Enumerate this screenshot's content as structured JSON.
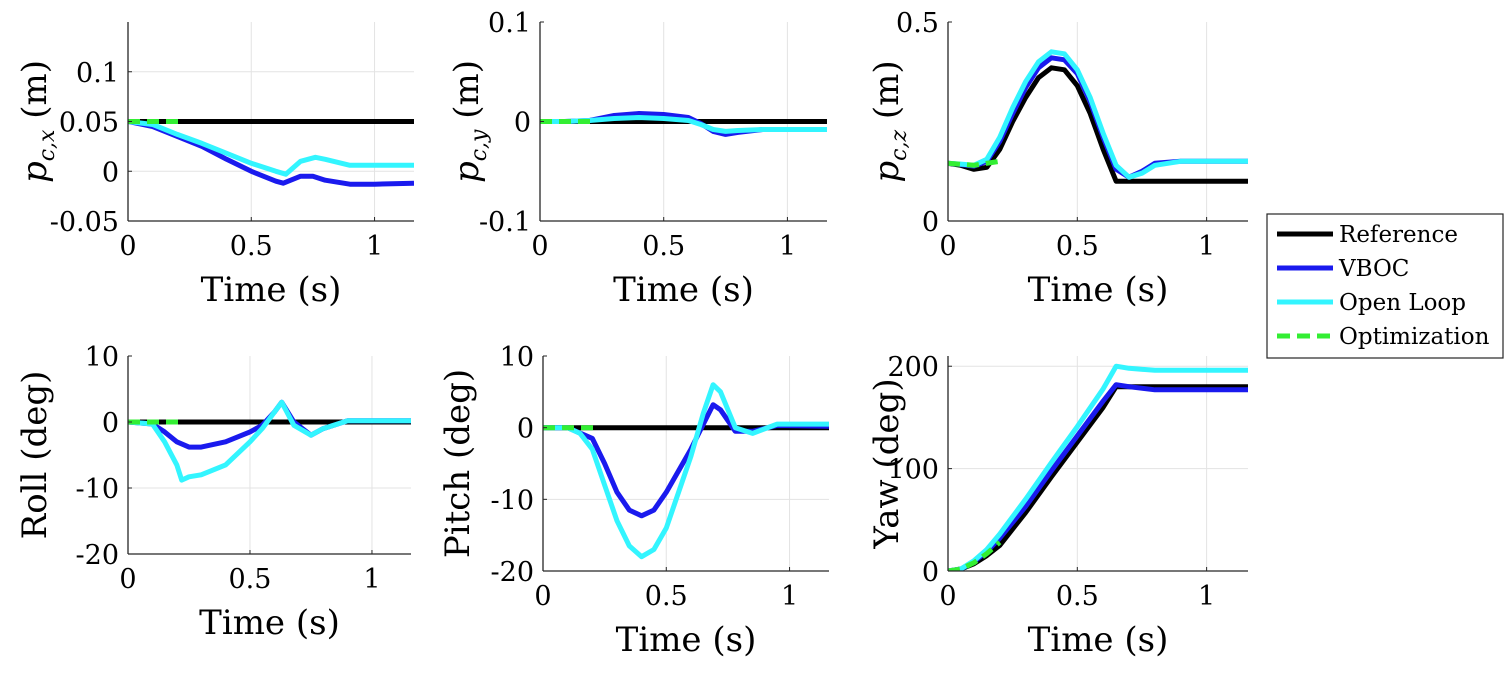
{
  "legend": {
    "entries": [
      {
        "label": "Reference",
        "color": "#000000",
        "dash": "solid"
      },
      {
        "label": "VBOC",
        "color": "#1a1aee",
        "dash": "solid"
      },
      {
        "label": "Open Loop",
        "color": "#33f5ff",
        "dash": "solid"
      },
      {
        "label": "Optimization",
        "color": "#33ee33",
        "dash": "dashed"
      }
    ]
  },
  "chart_data": [
    {
      "type": "line",
      "ylabel": {
        "base": "p",
        "sub": "c,x",
        "unit": " (m)"
      },
      "xlabel": "Time (s)",
      "xlim": [
        0,
        1.16
      ],
      "ylim": [
        -0.05,
        0.15
      ],
      "xticks": [
        0,
        0.5,
        1
      ],
      "xtick_labels": [
        "0",
        "0.5",
        "1"
      ],
      "yticks": [
        -0.05,
        0,
        0.05,
        0.1
      ],
      "ytick_labels": [
        "-0.05",
        "0",
        "0.05",
        "0.1"
      ],
      "series": [
        {
          "name": "Reference",
          "x": [
            0,
            1.16
          ],
          "y": [
            0.05,
            0.05
          ]
        },
        {
          "name": "VBOC",
          "x": [
            0,
            0.1,
            0.2,
            0.3,
            0.4,
            0.5,
            0.6,
            0.63,
            0.7,
            0.75,
            0.8,
            0.9,
            1.0,
            1.16
          ],
          "y": [
            0.05,
            0.045,
            0.035,
            0.025,
            0.012,
            0.0,
            -0.01,
            -0.012,
            -0.005,
            -0.005,
            -0.009,
            -0.013,
            -0.013,
            -0.012
          ]
        },
        {
          "name": "Open Loop",
          "x": [
            0,
            0.1,
            0.2,
            0.3,
            0.4,
            0.5,
            0.6,
            0.64,
            0.7,
            0.76,
            0.8,
            0.9,
            1.0,
            1.16
          ],
          "y": [
            0.05,
            0.047,
            0.037,
            0.028,
            0.018,
            0.008,
            0.0,
            -0.003,
            0.01,
            0.014,
            0.012,
            0.006,
            0.006,
            0.006
          ]
        },
        {
          "name": "Optimization",
          "x": [
            0,
            0.22
          ],
          "y": [
            0.05,
            0.05
          ]
        }
      ]
    },
    {
      "type": "line",
      "ylabel": {
        "base": "p",
        "sub": "c,y",
        "unit": " (m)"
      },
      "xlabel": "Time (s)",
      "xlim": [
        0,
        1.16
      ],
      "ylim": [
        -0.1,
        0.1
      ],
      "xticks": [
        0,
        0.5,
        1
      ],
      "xtick_labels": [
        "0",
        "0.5",
        "1"
      ],
      "yticks": [
        -0.1,
        0,
        0.1
      ],
      "ytick_labels": [
        "-0.1",
        "0",
        "0.1"
      ],
      "series": [
        {
          "name": "Reference",
          "x": [
            0,
            1.16
          ],
          "y": [
            0,
            0
          ]
        },
        {
          "name": "VBOC",
          "x": [
            0,
            0.1,
            0.2,
            0.3,
            0.4,
            0.5,
            0.6,
            0.65,
            0.7,
            0.75,
            0.8,
            0.9,
            1.0,
            1.16
          ],
          "y": [
            0,
            0,
            0.001,
            0.006,
            0.008,
            0.007,
            0.004,
            -0.002,
            -0.01,
            -0.013,
            -0.011,
            -0.008,
            -0.008,
            -0.008
          ]
        },
        {
          "name": "Open Loop",
          "x": [
            0,
            0.1,
            0.2,
            0.3,
            0.4,
            0.5,
            0.6,
            0.65,
            0.7,
            0.75,
            0.8,
            0.9,
            1.0,
            1.16
          ],
          "y": [
            0,
            0,
            0.001,
            0.003,
            0.004,
            0.003,
            0.001,
            -0.003,
            -0.008,
            -0.01,
            -0.009,
            -0.008,
            -0.008,
            -0.008
          ]
        },
        {
          "name": "Optimization",
          "x": [
            0,
            0.22
          ],
          "y": [
            0,
            0
          ]
        }
      ]
    },
    {
      "type": "line",
      "ylabel": {
        "base": "p",
        "sub": "c,z",
        "unit": " (m)"
      },
      "xlabel": "Time (s)",
      "xlim": [
        0,
        1.16
      ],
      "ylim": [
        0,
        0.5
      ],
      "xticks": [
        0,
        0.5,
        1
      ],
      "xtick_labels": [
        "0",
        "0.5",
        "1"
      ],
      "yticks": [
        0,
        0.5
      ],
      "ytick_labels": [
        "0",
        "0.5"
      ],
      "series": [
        {
          "name": "Reference",
          "x": [
            0,
            0.05,
            0.1,
            0.15,
            0.2,
            0.25,
            0.3,
            0.35,
            0.4,
            0.45,
            0.5,
            0.55,
            0.6,
            0.65,
            0.7,
            1.16
          ],
          "y": [
            0.145,
            0.14,
            0.13,
            0.135,
            0.18,
            0.25,
            0.31,
            0.36,
            0.385,
            0.38,
            0.34,
            0.27,
            0.18,
            0.1,
            0.1,
            0.1
          ]
        },
        {
          "name": "VBOC",
          "x": [
            0,
            0.05,
            0.1,
            0.15,
            0.2,
            0.25,
            0.3,
            0.35,
            0.4,
            0.45,
            0.5,
            0.55,
            0.6,
            0.65,
            0.7,
            0.75,
            0.8,
            0.9,
            1.0,
            1.16
          ],
          "y": [
            0.145,
            0.142,
            0.138,
            0.15,
            0.2,
            0.27,
            0.335,
            0.385,
            0.41,
            0.405,
            0.37,
            0.3,
            0.21,
            0.13,
            0.11,
            0.125,
            0.145,
            0.15,
            0.15,
            0.15
          ]
        },
        {
          "name": "Open Loop",
          "x": [
            0,
            0.05,
            0.1,
            0.15,
            0.2,
            0.25,
            0.3,
            0.35,
            0.4,
            0.45,
            0.5,
            0.55,
            0.6,
            0.65,
            0.7,
            0.75,
            0.8,
            0.9,
            1.0,
            1.16
          ],
          "y": [
            0.145,
            0.143,
            0.14,
            0.155,
            0.21,
            0.285,
            0.35,
            0.4,
            0.425,
            0.42,
            0.38,
            0.31,
            0.22,
            0.14,
            0.11,
            0.12,
            0.14,
            0.15,
            0.15,
            0.15
          ]
        },
        {
          "name": "Optimization",
          "x": [
            0,
            0.1,
            0.2
          ],
          "y": [
            0.145,
            0.14,
            0.15
          ]
        }
      ]
    },
    {
      "type": "line",
      "ylabel": {
        "text": "Roll (deg)"
      },
      "xlabel": "Time (s)",
      "xlim": [
        0,
        1.16
      ],
      "ylim": [
        -20,
        10
      ],
      "xticks": [
        0,
        0.5,
        1
      ],
      "xtick_labels": [
        "0",
        "0.5",
        "1"
      ],
      "yticks": [
        -20,
        -10,
        0,
        10
      ],
      "ytick_labels": [
        "-20",
        "-10",
        "0",
        "10"
      ],
      "series": [
        {
          "name": "Reference",
          "x": [
            0,
            1.16
          ],
          "y": [
            0,
            0
          ]
        },
        {
          "name": "VBOC",
          "x": [
            0,
            0.1,
            0.15,
            0.2,
            0.25,
            0.3,
            0.4,
            0.5,
            0.55,
            0.6,
            0.63,
            0.68,
            0.75,
            0.8,
            0.9,
            1.0,
            1.16
          ],
          "y": [
            0,
            -0.3,
            -1.5,
            -3,
            -3.8,
            -3.8,
            -3,
            -1.5,
            -0.5,
            1.5,
            3,
            0,
            -2,
            -1,
            0.2,
            0.2,
            0.2
          ]
        },
        {
          "name": "Open Loop",
          "x": [
            0,
            0.1,
            0.15,
            0.2,
            0.22,
            0.25,
            0.3,
            0.4,
            0.5,
            0.55,
            0.6,
            0.63,
            0.68,
            0.75,
            0.8,
            0.9,
            1.0,
            1.16
          ],
          "y": [
            0,
            -0.3,
            -3,
            -6.5,
            -8.8,
            -8.3,
            -8,
            -6.5,
            -3,
            -1,
            1.5,
            3,
            -0.5,
            -2,
            -1,
            0.2,
            0.2,
            0.2
          ]
        },
        {
          "name": "Optimization",
          "x": [
            0,
            0.22
          ],
          "y": [
            0,
            0
          ]
        }
      ]
    },
    {
      "type": "line",
      "ylabel": {
        "text": "Pitch (deg)"
      },
      "xlabel": "Time (s)",
      "xlim": [
        0,
        1.16
      ],
      "ylim": [
        -20,
        10
      ],
      "xticks": [
        0,
        0.5,
        1
      ],
      "xtick_labels": [
        "0",
        "0.5",
        "1"
      ],
      "yticks": [
        -20,
        -10,
        0,
        10
      ],
      "ytick_labels": [
        "-20",
        "-10",
        "0",
        "10"
      ],
      "series": [
        {
          "name": "Reference",
          "x": [
            0,
            1.16
          ],
          "y": [
            0,
            0
          ]
        },
        {
          "name": "VBOC",
          "x": [
            0,
            0.1,
            0.2,
            0.25,
            0.3,
            0.35,
            0.4,
            0.45,
            0.5,
            0.55,
            0.6,
            0.65,
            0.69,
            0.72,
            0.78,
            0.85,
            0.95,
            1.16
          ],
          "y": [
            0,
            0,
            -1.5,
            -5,
            -9,
            -11.5,
            -12.3,
            -11.5,
            -9,
            -6,
            -3,
            0.5,
            3.2,
            2.5,
            -0.5,
            -0.5,
            0.3,
            0.2
          ]
        },
        {
          "name": "Open Loop",
          "x": [
            0,
            0.1,
            0.15,
            0.2,
            0.25,
            0.3,
            0.35,
            0.4,
            0.45,
            0.5,
            0.55,
            0.6,
            0.65,
            0.69,
            0.72,
            0.78,
            0.85,
            0.95,
            1.16
          ],
          "y": [
            0,
            0,
            -0.8,
            -3,
            -8,
            -13,
            -16.5,
            -18,
            -17,
            -14,
            -9,
            -4,
            2,
            6,
            5,
            0,
            -0.8,
            0.5,
            0.5
          ]
        },
        {
          "name": "Optimization",
          "x": [
            0,
            0.22
          ],
          "y": [
            0,
            0
          ]
        }
      ]
    },
    {
      "type": "line",
      "ylabel": {
        "text": "Yaw (deg)"
      },
      "xlabel": "Time (s)",
      "xlim": [
        0,
        1.16
      ],
      "ylim": [
        0,
        210
      ],
      "xticks": [
        0,
        0.5,
        1
      ],
      "xtick_labels": [
        "0",
        "0.5",
        "1"
      ],
      "yticks": [
        0,
        100,
        200
      ],
      "ytick_labels": [
        "0",
        "100",
        "200"
      ],
      "series": [
        {
          "name": "Reference",
          "x": [
            0,
            0.05,
            0.1,
            0.15,
            0.2,
            0.3,
            0.4,
            0.5,
            0.6,
            0.65,
            1.16
          ],
          "y": [
            0,
            2,
            7,
            15,
            25,
            57,
            92,
            126,
            160,
            180,
            180
          ]
        },
        {
          "name": "VBOC",
          "x": [
            0,
            0.05,
            0.1,
            0.15,
            0.2,
            0.3,
            0.4,
            0.5,
            0.6,
            0.65,
            0.7,
            0.8,
            1.16
          ],
          "y": [
            0,
            2,
            9,
            19,
            32,
            63,
            98,
            132,
            166,
            182,
            180,
            177,
            177
          ]
        },
        {
          "name": "Open Loop",
          "x": [
            0,
            0.05,
            0.1,
            0.15,
            0.2,
            0.3,
            0.4,
            0.5,
            0.6,
            0.65,
            0.7,
            0.8,
            1.16
          ],
          "y": [
            0,
            2,
            10,
            21,
            36,
            70,
            106,
            141,
            178,
            200,
            198,
            196,
            196
          ]
        },
        {
          "name": "Optimization",
          "x": [
            0,
            0.05,
            0.1,
            0.15,
            0.2
          ],
          "y": [
            0,
            2,
            8,
            17,
            28
          ]
        }
      ]
    }
  ]
}
